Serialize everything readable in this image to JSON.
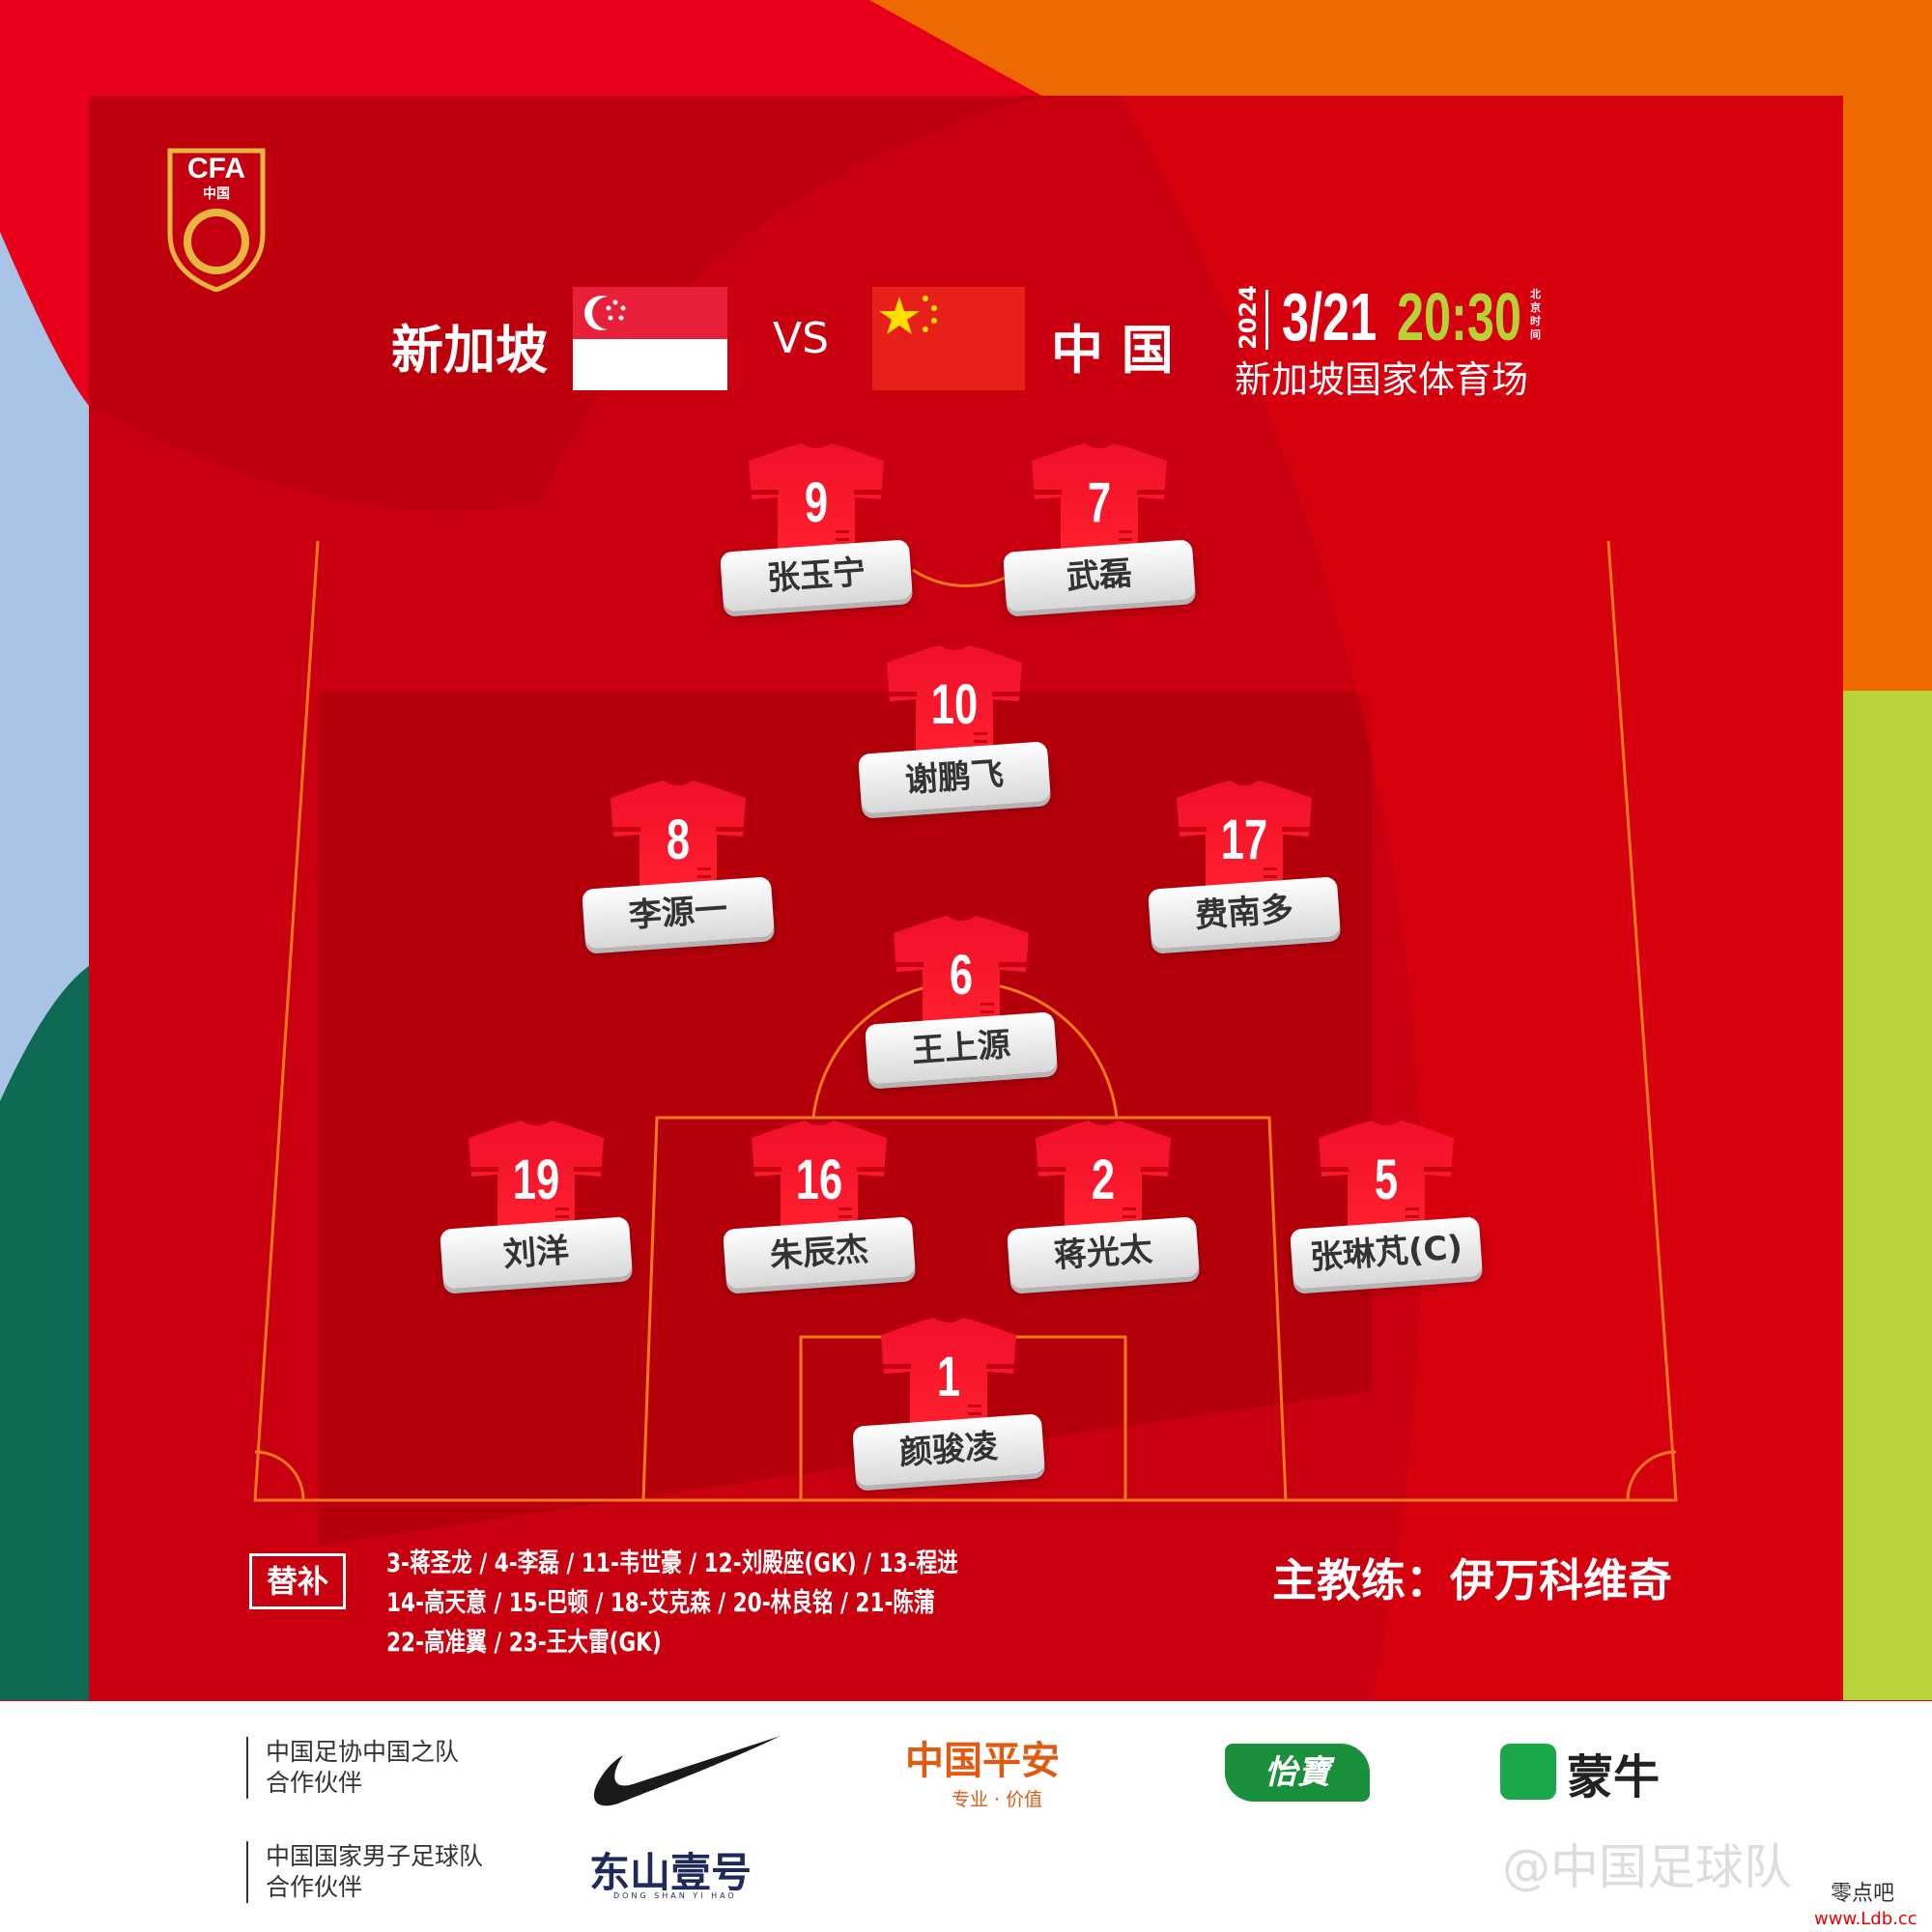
{
  "match": {
    "home_team": "新加坡",
    "vs": "VS",
    "away_team": "中 国",
    "year": "2024",
    "date": "3/21",
    "time": "20:30",
    "time_zone": "北京时间",
    "venue": "新加坡国家体育场"
  },
  "logo": {
    "text": "CFA",
    "subtext": "中国"
  },
  "colors": {
    "primary_red": "#e8001a",
    "panel_red": "#b8000d",
    "time_green": "#b5d334",
    "orange": "#ee6a00"
  },
  "lineup": [
    {
      "number": "9",
      "name": "张玉宁"
    },
    {
      "number": "7",
      "name": "武磊"
    },
    {
      "number": "10",
      "name": "谢鹏飞"
    },
    {
      "number": "8",
      "name": "李源一"
    },
    {
      "number": "17",
      "name": "费南多"
    },
    {
      "number": "6",
      "name": "王上源"
    },
    {
      "number": "19",
      "name": "刘洋"
    },
    {
      "number": "16",
      "name": "朱辰杰"
    },
    {
      "number": "2",
      "name": "蒋光太"
    },
    {
      "number": "5",
      "name": "张琳芃(C)"
    },
    {
      "number": "1",
      "name": "颜骏凌"
    }
  ],
  "substitutes": {
    "label": "替补",
    "lines": [
      "3-蒋圣龙 / 4-李磊 / 11-韦世豪 / 12-刘殿座(GK) / 13-程进",
      "14-高天意 / 15-巴顿 / 18-艾克森 / 20-林良铭 / 21-陈蒲",
      "22-高准翼 / 23-王大雷(GK)"
    ]
  },
  "coach": "主教练：伊万科维奇",
  "sponsors": {
    "row1_label": [
      "中国足协中国之队",
      "合作伙伴"
    ],
    "row2_label": [
      "中国国家男子足球队",
      "合作伙伴"
    ],
    "pingan": "中国平安",
    "pingan_slogan": "专业 · 价值",
    "yibao": "怡寶",
    "mengniu": "蒙牛",
    "dongshan": "东山壹号",
    "dongshan_pinyin": "DONG SHAN YI HAO"
  },
  "watermark": {
    "weibo": "@中国足球队",
    "site_cn": "零点吧",
    "site": "www.Ldb.cc"
  }
}
